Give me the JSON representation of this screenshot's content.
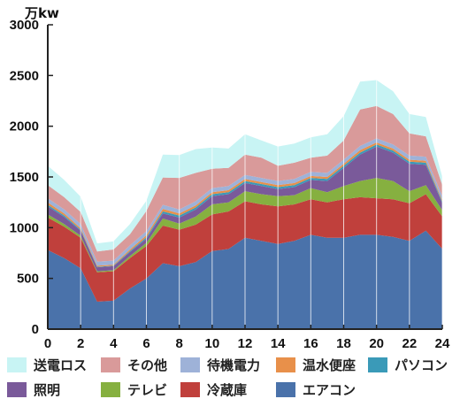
{
  "chart_data": {
    "type": "area",
    "stacked": true,
    "unit_label": "万kw",
    "xlim": [
      0,
      24
    ],
    "ylim": [
      0,
      3000
    ],
    "x_ticks": [
      0,
      2,
      4,
      6,
      8,
      10,
      12,
      14,
      16,
      18,
      20,
      22,
      24
    ],
    "y_ticks": [
      0,
      500,
      1000,
      1500,
      2000,
      2500,
      3000
    ],
    "grid": "vertical",
    "legend_position": "bottom",
    "x": [
      0,
      1,
      2,
      3,
      4,
      5,
      6,
      7,
      8,
      9,
      10,
      11,
      12,
      13,
      14,
      15,
      16,
      17,
      18,
      19,
      20,
      21,
      22,
      23,
      24
    ],
    "series": [
      {
        "name": "エアコン",
        "color": "#4a72aa",
        "values": [
          780,
          700,
          600,
          270,
          280,
          400,
          500,
          650,
          620,
          660,
          770,
          790,
          900,
          870,
          840,
          870,
          930,
          900,
          900,
          930,
          930,
          910,
          870,
          970,
          790
        ]
      },
      {
        "name": "冷蔵庫",
        "color": "#c0403c",
        "values": [
          320,
          310,
          300,
          290,
          290,
          300,
          320,
          370,
          360,
          370,
          360,
          370,
          360,
          360,
          370,
          360,
          350,
          350,
          380,
          370,
          360,
          370,
          370,
          360,
          320
        ]
      },
      {
        "name": "テレビ",
        "color": "#86b040",
        "values": [
          30,
          25,
          20,
          10,
          10,
          20,
          30,
          70,
          60,
          80,
          100,
          90,
          100,
          100,
          100,
          90,
          110,
          100,
          130,
          160,
          200,
          180,
          120,
          90,
          60
        ]
      },
      {
        "name": "照明",
        "color": "#7a5a9a",
        "values": [
          80,
          70,
          50,
          40,
          40,
          40,
          40,
          50,
          60,
          70,
          80,
          80,
          80,
          80,
          70,
          80,
          80,
          110,
          180,
          260,
          310,
          280,
          270,
          200,
          70
        ]
      },
      {
        "name": "パソコン",
        "color": "#3a9ab8",
        "values": [
          15,
          15,
          10,
          5,
          5,
          10,
          15,
          20,
          20,
          20,
          20,
          20,
          20,
          20,
          20,
          20,
          20,
          20,
          20,
          20,
          20,
          20,
          20,
          20,
          15
        ]
      },
      {
        "name": "温水便座",
        "color": "#e8904a",
        "values": [
          25,
          20,
          15,
          10,
          10,
          15,
          20,
          25,
          20,
          20,
          20,
          20,
          20,
          20,
          20,
          20,
          20,
          20,
          20,
          25,
          20,
          20,
          20,
          20,
          15
        ]
      },
      {
        "name": "待機電力",
        "color": "#9eb2d8",
        "values": [
          40,
          40,
          40,
          40,
          40,
          40,
          40,
          40,
          40,
          40,
          40,
          40,
          40,
          40,
          40,
          40,
          40,
          40,
          40,
          40,
          40,
          40,
          40,
          40,
          40
        ]
      },
      {
        "name": "その他",
        "color": "#d99a9a",
        "values": [
          130,
          120,
          120,
          100,
          110,
          110,
          200,
          270,
          310,
          280,
          190,
          180,
          200,
          200,
          150,
          160,
          140,
          170,
          190,
          360,
          320,
          300,
          220,
          200,
          110
        ]
      },
      {
        "name": "送電ロス",
        "color": "#c8f4f4",
        "values": [
          190,
          170,
          150,
          80,
          80,
          100,
          100,
          225,
          225,
          235,
          210,
          190,
          200,
          170,
          190,
          190,
          200,
          210,
          240,
          275,
          255,
          225,
          190,
          190,
          80
        ]
      }
    ]
  }
}
